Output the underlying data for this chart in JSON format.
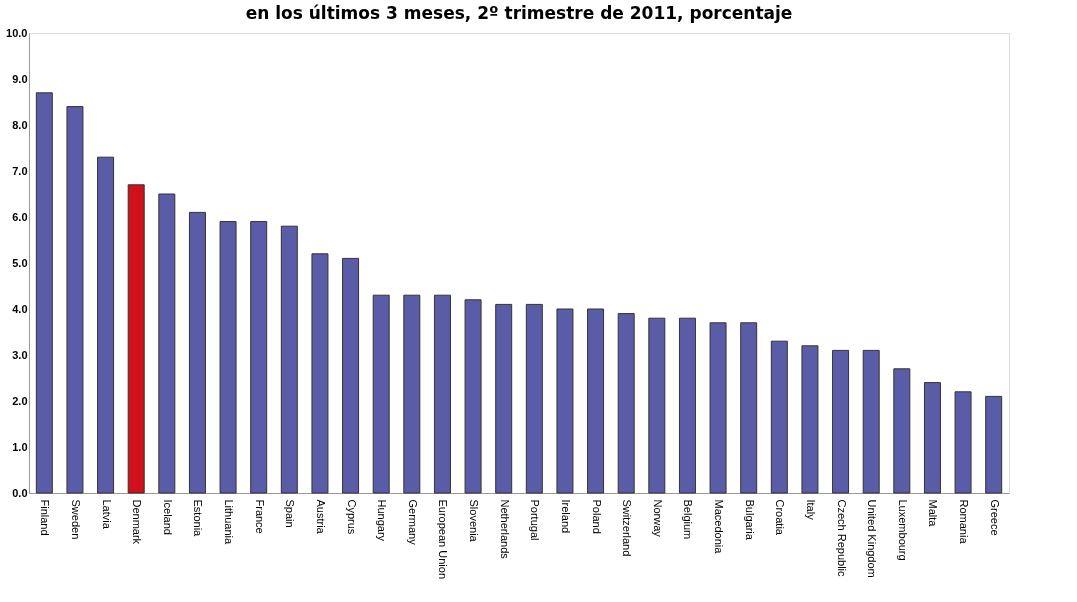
{
  "chart_data": {
    "type": "bar",
    "title": "en los últimos 3 meses, 2º trimestre de 2011, porcentaje",
    "categories": [
      "Finland",
      "Sweden",
      "Latvia",
      "Denmark",
      "Iceland",
      "Estonia",
      "Lithuania",
      "France",
      "Spain",
      "Austria",
      "Cyprus",
      "Hungary",
      "Germany",
      "European Union",
      "Slovenia",
      "Netherlands",
      "Portugal",
      "Ireland",
      "Poland",
      "Switzerland",
      "Norway",
      "Belgium",
      "Macedonia",
      "Bulgaria",
      "Croatia",
      "Italy",
      "Czech Republic",
      "United Kingdom",
      "Luxembourg",
      "Malta",
      "Romania",
      "Greece"
    ],
    "values": [
      8.7,
      8.4,
      7.3,
      6.7,
      6.5,
      6.1,
      5.9,
      5.9,
      5.8,
      5.2,
      5.1,
      4.3,
      4.3,
      4.3,
      4.2,
      4.1,
      4.1,
      4.0,
      4.0,
      3.9,
      3.8,
      3.8,
      3.7,
      3.7,
      3.3,
      3.2,
      3.1,
      3.1,
      2.7,
      2.4,
      2.2,
      2.1
    ],
    "colors": [
      "#5b5ca8",
      "#5b5ca8",
      "#5b5ca8",
      "#d0101a",
      "#5b5ca8",
      "#5b5ca8",
      "#5b5ca8",
      "#5b5ca8",
      "#5b5ca8",
      "#5b5ca8",
      "#5b5ca8",
      "#5b5ca8",
      "#5b5ca8",
      "#5b5ca8",
      "#5b5ca8",
      "#5b5ca8",
      "#5b5ca8",
      "#5b5ca8",
      "#5b5ca8",
      "#5b5ca8",
      "#5b5ca8",
      "#5b5ca8",
      "#5b5ca8",
      "#5b5ca8",
      "#5b5ca8",
      "#5b5ca8",
      "#5b5ca8",
      "#5b5ca8",
      "#5b5ca8",
      "#5b5ca8",
      "#5b5ca8",
      "#5b5ca8"
    ],
    "ylim": [
      0,
      10
    ],
    "yticks": [
      {
        "value": 0,
        "label": "0.0"
      },
      {
        "value": 1,
        "label": "1.0"
      },
      {
        "value": 2,
        "label": "2.0"
      },
      {
        "value": 3,
        "label": "3.0"
      },
      {
        "value": 4,
        "label": "4.0"
      },
      {
        "value": 5,
        "label": "5.0"
      },
      {
        "value": 6,
        "label": "6.0"
      },
      {
        "value": 7,
        "label": "7.0"
      },
      {
        "value": 8,
        "label": "8.0"
      },
      {
        "value": 9,
        "label": "9.0"
      },
      {
        "value": 10,
        "label": "10.0"
      }
    ],
    "grid": false
  }
}
